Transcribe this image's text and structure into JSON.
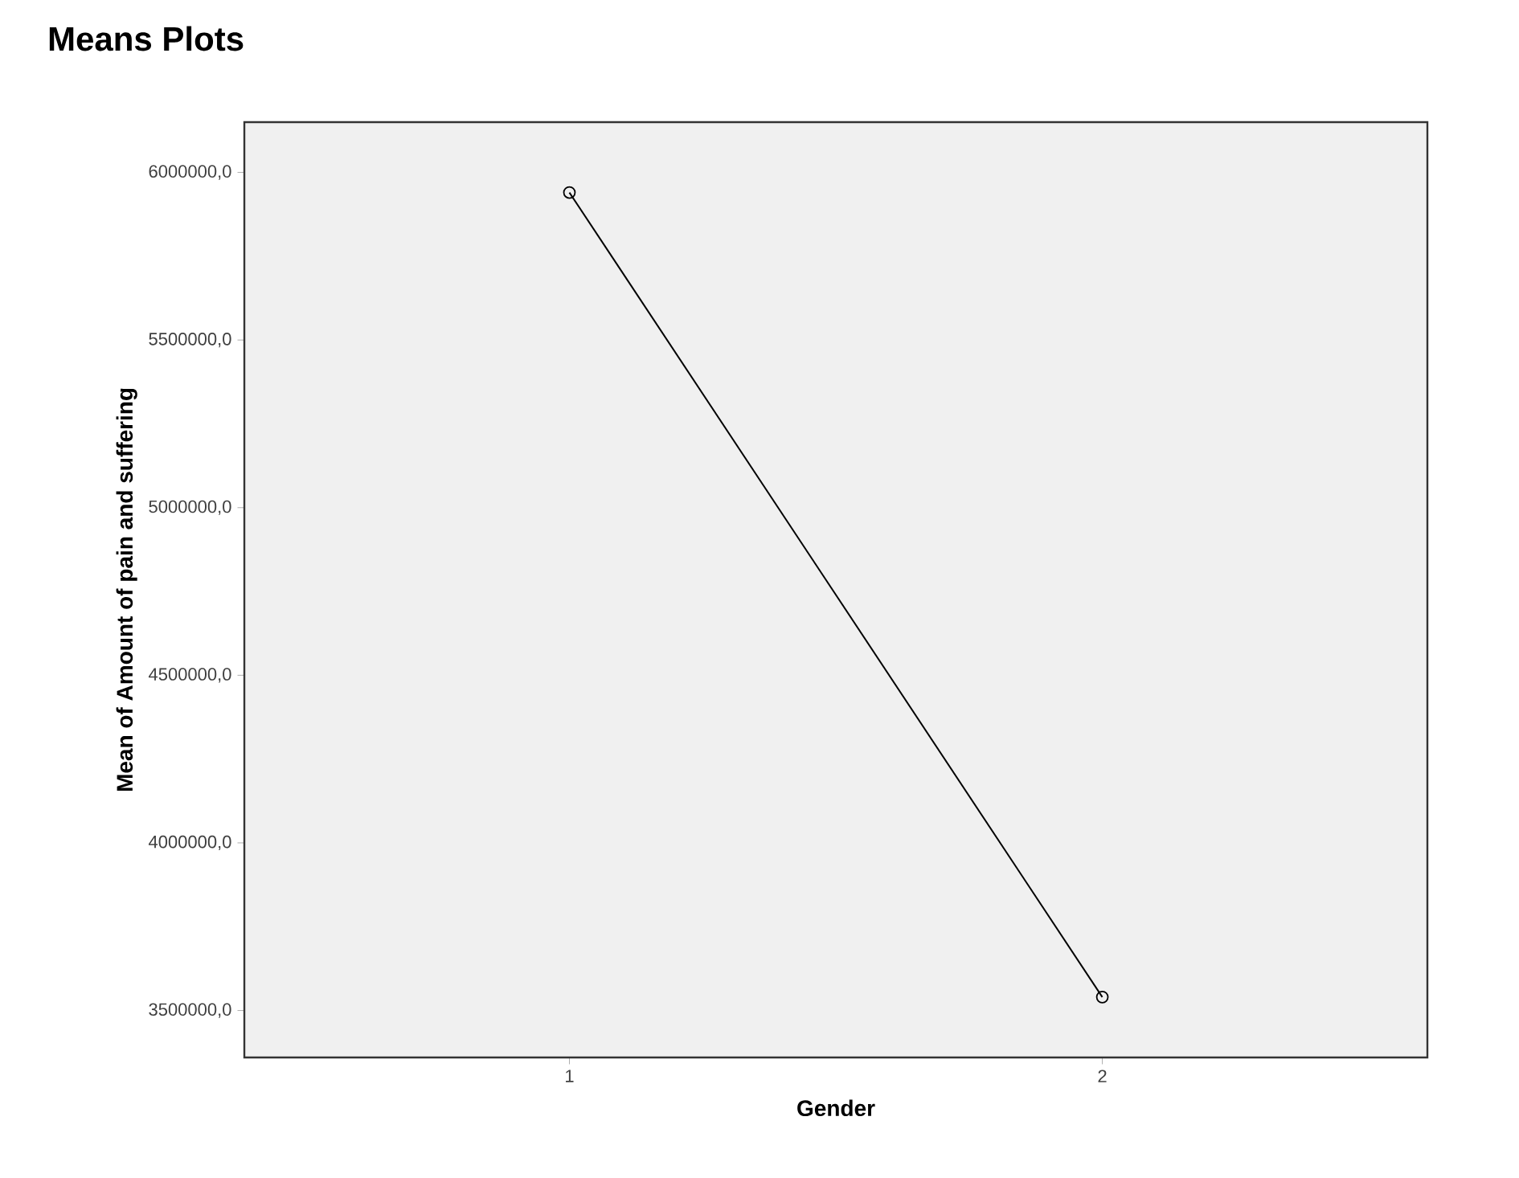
{
  "chart_data": {
    "type": "line",
    "title": "Means Plots",
    "xlabel": "Gender",
    "ylabel": "Mean of Amount of pain and suffering",
    "categories": [
      "1",
      "2"
    ],
    "series": [
      {
        "color": "#000000",
        "values": [
          5940000,
          3540000
        ]
      }
    ],
    "ylim": [
      3360000,
      6150000
    ],
    "yticks": [
      {
        "value": 3500000,
        "label": "3500000,0"
      },
      {
        "value": 4000000,
        "label": "4000000,0"
      },
      {
        "value": 4500000,
        "label": "4500000,0"
      },
      {
        "value": 5000000,
        "label": "5000000,0"
      },
      {
        "value": 5500000,
        "label": "5500000,0"
      },
      {
        "value": 6000000,
        "label": "6000000,0"
      }
    ],
    "grid": false,
    "marker": "circle",
    "line_style": "solid"
  }
}
